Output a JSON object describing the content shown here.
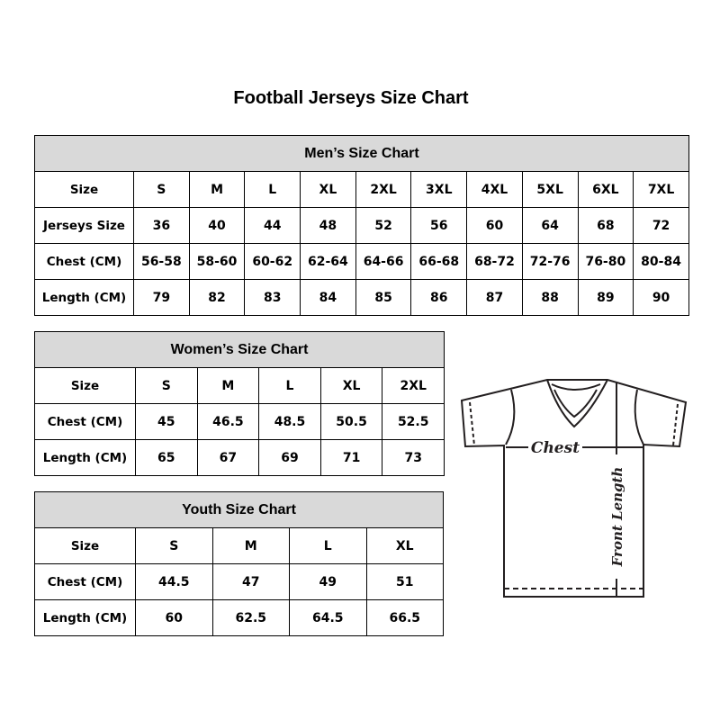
{
  "title": "Football Jerseys Size Chart",
  "men": {
    "heading": "Men’s Size Chart",
    "rows": [
      [
        "Size",
        "S",
        "M",
        "L",
        "XL",
        "2XL",
        "3XL",
        "4XL",
        "5XL",
        "6XL",
        "7XL"
      ],
      [
        "Jerseys Size",
        "36",
        "40",
        "44",
        "48",
        "52",
        "56",
        "60",
        "64",
        "68",
        "72"
      ],
      [
        "Chest (CM)",
        "56-58",
        "58-60",
        "60-62",
        "62-64",
        "64-66",
        "66-68",
        "68-72",
        "72-76",
        "76-80",
        "80-84"
      ],
      [
        "Length (CM)",
        "79",
        "82",
        "83",
        "84",
        "85",
        "86",
        "87",
        "88",
        "89",
        "90"
      ]
    ]
  },
  "women": {
    "heading": "Women’s Size Chart",
    "rows": [
      [
        "Size",
        "S",
        "M",
        "L",
        "XL",
        "2XL"
      ],
      [
        "Chest (CM)",
        "45",
        "46.5",
        "48.5",
        "50.5",
        "52.5"
      ],
      [
        "Length (CM)",
        "65",
        "67",
        "69",
        "71",
        "73"
      ]
    ]
  },
  "youth": {
    "heading": "Youth Size Chart",
    "rows": [
      [
        "Size",
        "S",
        "M",
        "L",
        "XL"
      ],
      [
        "Chest (CM)",
        "44.5",
        "47",
        "49",
        "51"
      ],
      [
        "Length (CM)",
        "60",
        "62.5",
        "64.5",
        "66.5"
      ]
    ]
  },
  "diagram": {
    "chest_label": "Chest",
    "length_label": "Front Length"
  },
  "colors": {
    "header_bg": "#d9d9d9",
    "line": "#231f20"
  }
}
